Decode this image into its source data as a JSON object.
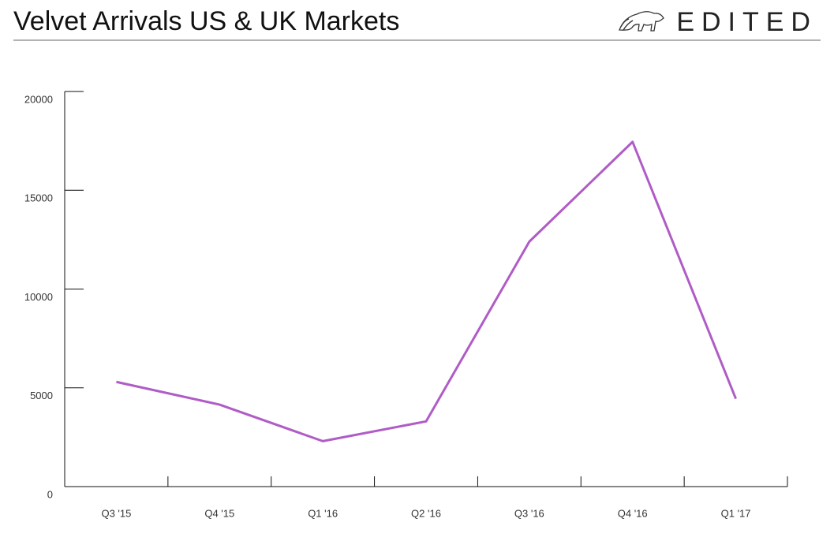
{
  "brand": "EDITED",
  "chart_data": {
    "type": "line",
    "title": "Velvet Arrivals US & UK Markets",
    "categories": [
      "Q3 '15",
      "Q4 '15",
      "Q1 '16",
      "Q2 '16",
      "Q3 '16",
      "Q4 '16",
      "Q1 '17"
    ],
    "series": [
      {
        "name": "Velvet Arrivals",
        "color": "#b05cc6",
        "values": [
          5300,
          4150,
          2300,
          3300,
          12400,
          17450,
          4450
        ]
      }
    ],
    "ylim": [
      0,
      20000
    ],
    "yticks": [
      0,
      5000,
      10000,
      15000,
      20000
    ],
    "grid": false
  }
}
